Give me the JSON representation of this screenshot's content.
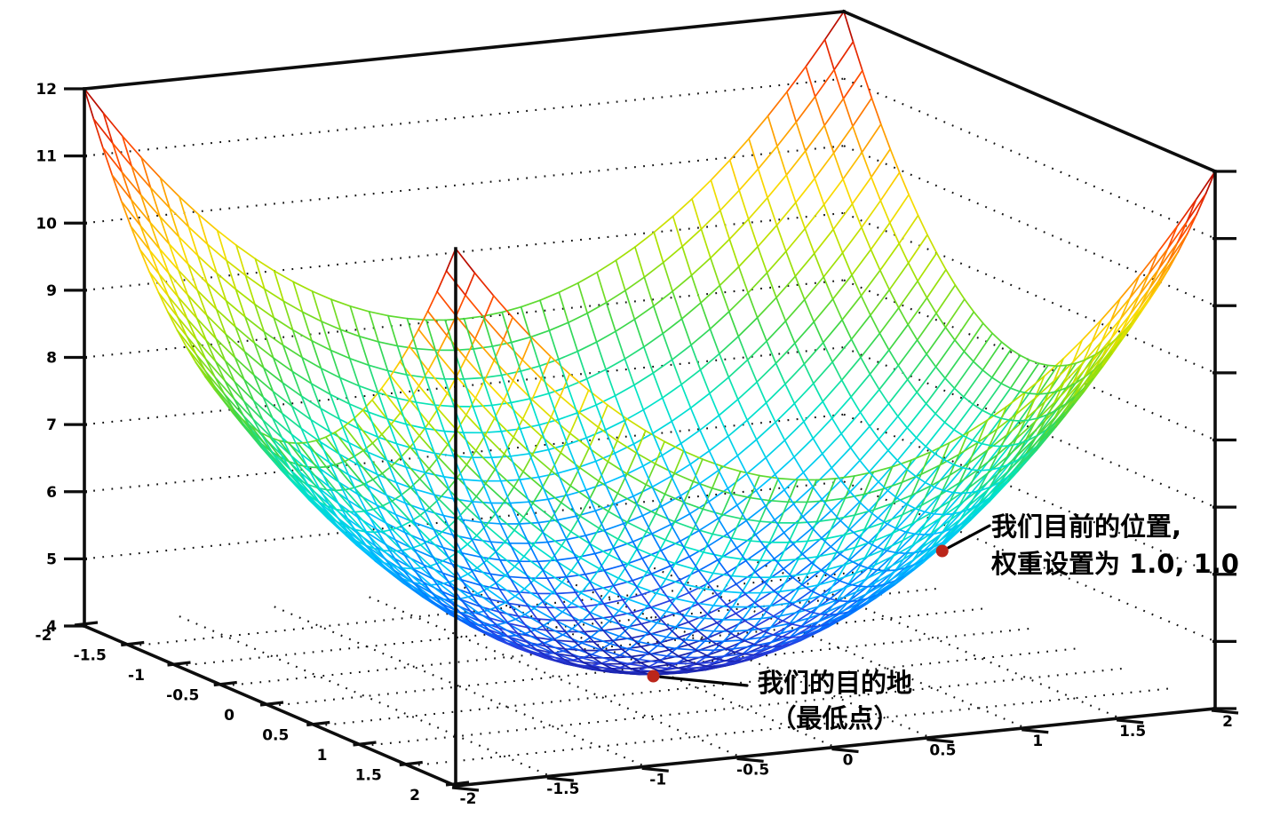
{
  "page": {
    "background": "#ffffff"
  },
  "chart_data": {
    "type": "surface-mesh-3d",
    "title": "",
    "expression": "z = x^2 + y^2 + 4",
    "x_range": [
      -2,
      2
    ],
    "y_range": [
      -2,
      2
    ],
    "z_range": [
      4,
      12
    ],
    "x_ticks": [
      -2,
      -1.5,
      -1,
      -0.5,
      0,
      0.5,
      1,
      1.5,
      2
    ],
    "y_ticks": [
      -2,
      -1.5,
      -1,
      -0.5,
      0,
      0.5,
      1,
      1.5,
      2
    ],
    "z_ticks": [
      4,
      5,
      6,
      7,
      8,
      9,
      10,
      11,
      12
    ],
    "x_tick_labels": [
      "-2",
      "-1.5",
      "-1",
      "-0.5",
      "0",
      "0.5",
      "1",
      "1.5",
      "2"
    ],
    "y_tick_labels": [
      "-2",
      "-1.5",
      "-1",
      "-0.5",
      "0",
      "0.5",
      "1",
      "1.5",
      "2"
    ],
    "z_tick_labels": [
      "4",
      "5",
      "6",
      "7",
      "8",
      "9",
      "10",
      "11",
      "12"
    ],
    "grid": {
      "floor_dotted": true,
      "wall_dotted_z_levels": [
        5,
        6,
        7,
        8,
        9,
        10,
        11
      ],
      "style": "dotted-black"
    },
    "mesh_divisions": 40,
    "colormap": {
      "name": "rainbow-jet",
      "mapped_to": "z",
      "low_color": "#161d9e",
      "high_color": "#a50000"
    },
    "legend": "none",
    "annotations": [
      {
        "id": "current-position",
        "lines": [
          "我们目前的位置,",
          "权重设置为 1.0, 1.0"
        ],
        "point": {
          "x": 1.0,
          "y": 1.0,
          "z": 6.0
        },
        "marker_color": "#bb261b",
        "leader_color": "#000000"
      },
      {
        "id": "destination",
        "lines": [
          "我们的目的地",
          "（最低点）"
        ],
        "point": {
          "x": 0.0,
          "y": 0.0,
          "z": 4.0
        },
        "marker_color": "#bb261b",
        "leader_color": "#000000"
      }
    ]
  }
}
